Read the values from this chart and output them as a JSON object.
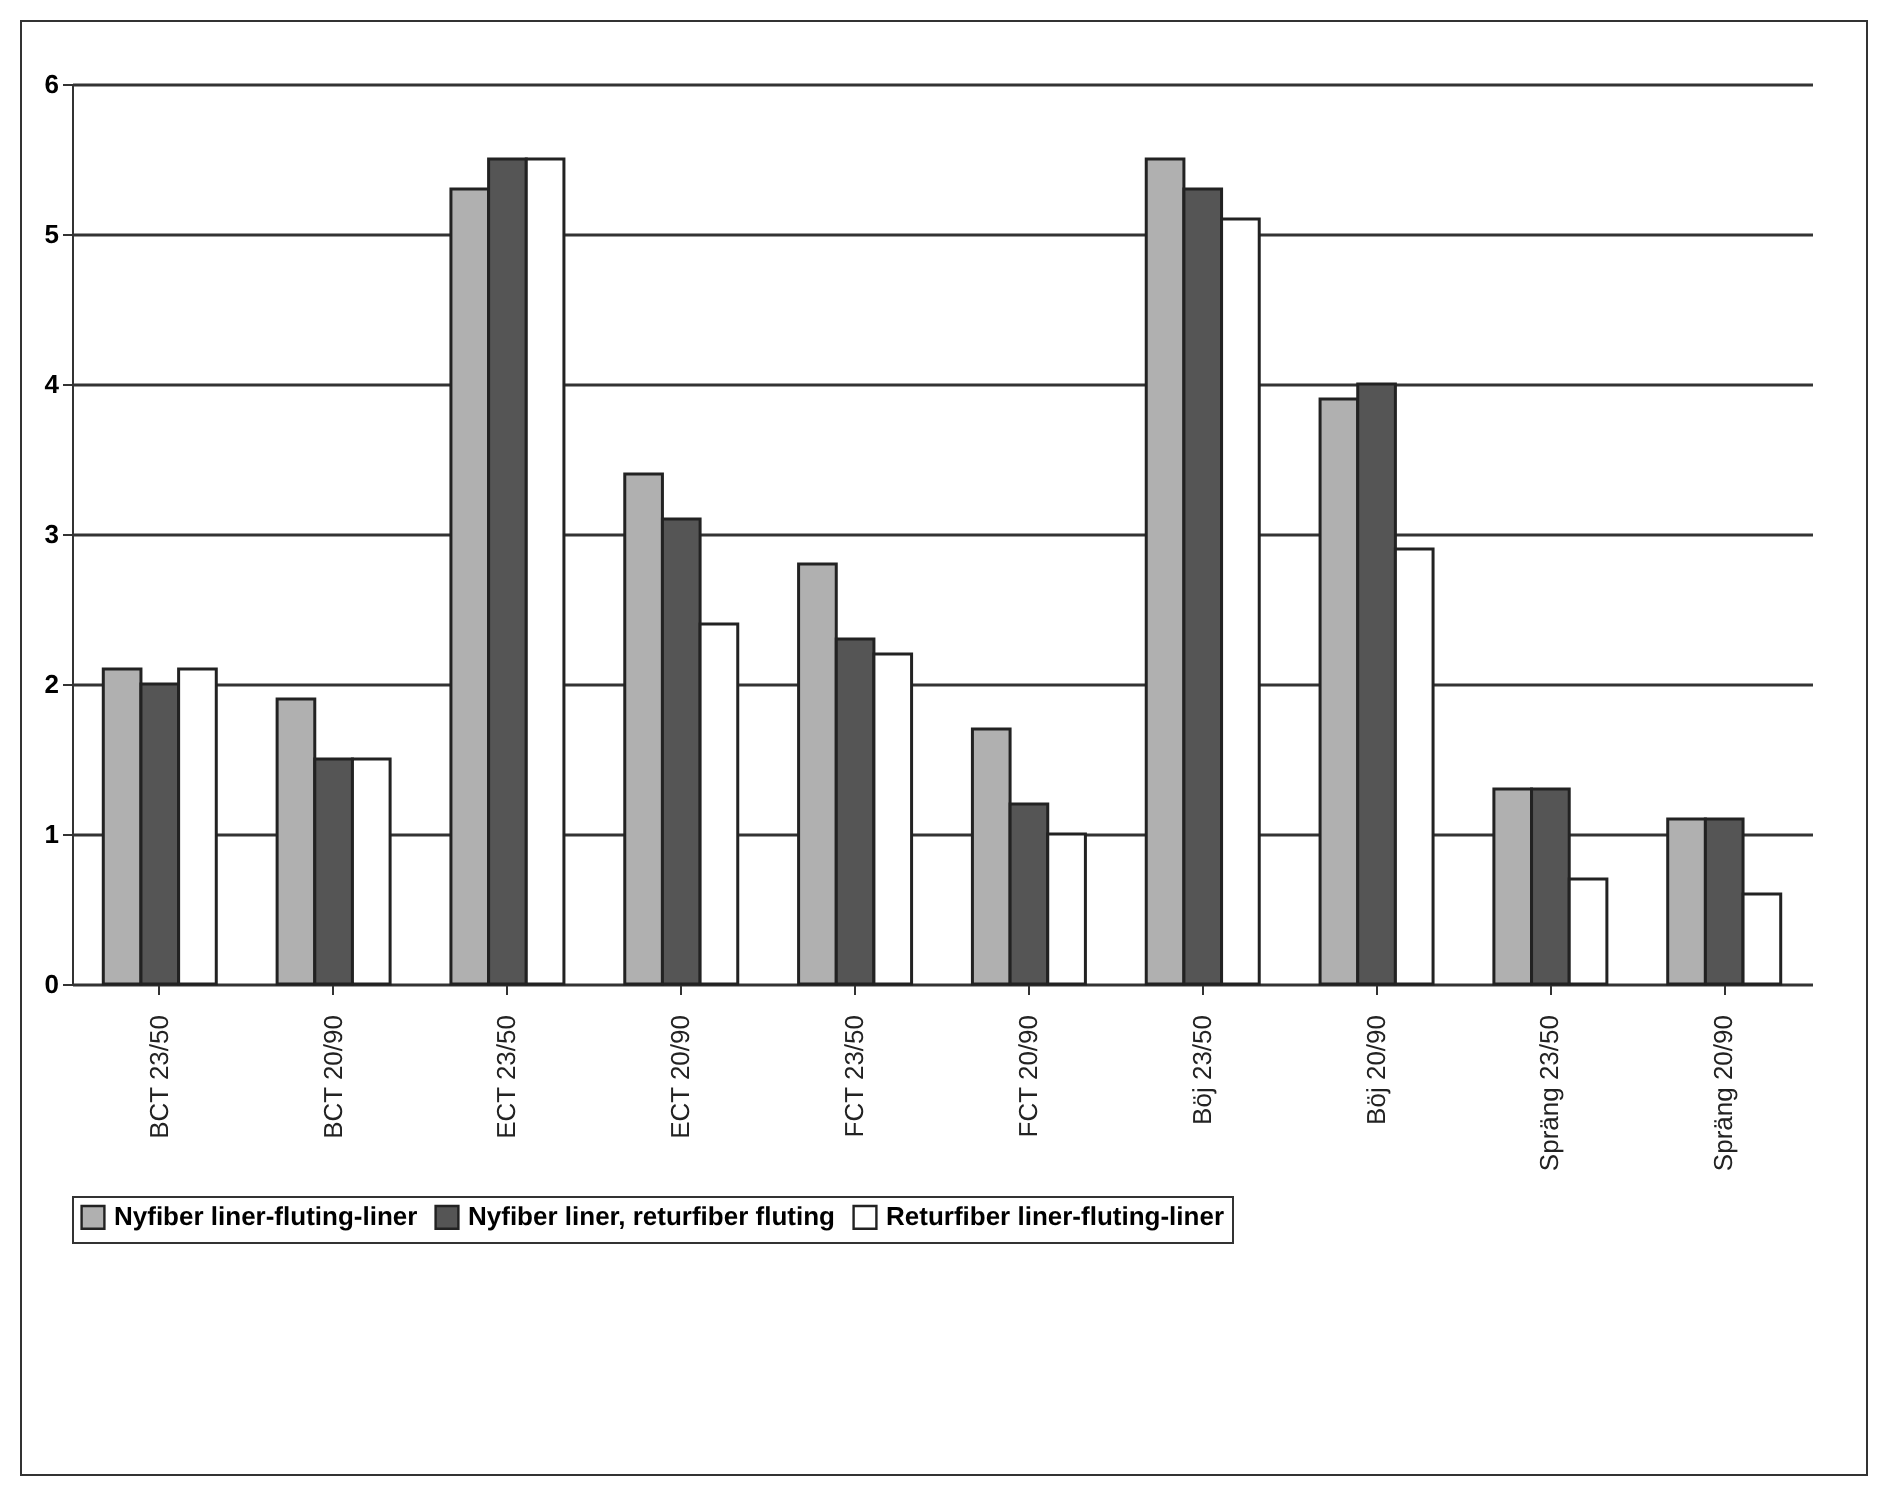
{
  "chart_data": {
    "type": "bar",
    "categories": [
      "BCT 23/50",
      "BCT 20/90",
      "ECT 23/50",
      "ECT 20/90",
      "FCT 23/50",
      "FCT 20/90",
      "Böj 23/50",
      "Böj 20/90",
      "Spräng 23/50",
      "Spräng 20/90"
    ],
    "series": [
      {
        "name": "Nyfiber liner-fluting-liner",
        "color": "#b0b0b0",
        "values": [
          2.1,
          1.9,
          5.3,
          3.4,
          2.8,
          1.7,
          5.5,
          3.9,
          1.3,
          1.1
        ]
      },
      {
        "name": "Nyfiber liner, returfiber fluting",
        "color": "#555555",
        "values": [
          2.0,
          1.5,
          5.5,
          3.1,
          2.3,
          1.2,
          5.3,
          4.0,
          1.3,
          1.1
        ]
      },
      {
        "name": "Returfiber liner-fluting-liner",
        "color": "#ffffff",
        "values": [
          2.1,
          1.5,
          5.5,
          2.4,
          2.2,
          1.0,
          5.1,
          2.9,
          0.7,
          0.6
        ]
      }
    ],
    "ylim": [
      0,
      6
    ],
    "yticks": [
      0,
      1,
      2,
      3,
      4,
      5,
      6
    ],
    "grid": "y",
    "legend": "bottom"
  }
}
